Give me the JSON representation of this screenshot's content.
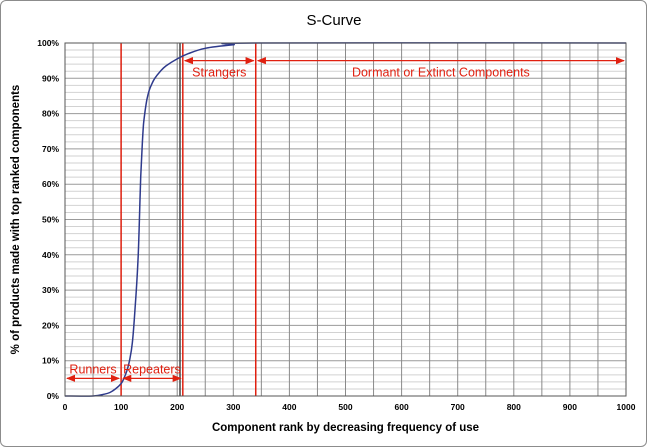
{
  "chart_data": {
    "type": "line",
    "title": "S-Curve",
    "xlabel": "Component rank by decreasing frequency of use",
    "ylabel": "% of products made with top ranked components",
    "xlim": [
      0,
      1000
    ],
    "ylim": [
      0,
      100
    ],
    "x_ticks": [
      "0",
      "100",
      "200",
      "300",
      "400",
      "500",
      "600",
      "700",
      "800",
      "900",
      "1000"
    ],
    "y_ticks": [
      "0%",
      "10%",
      "20%",
      "30%",
      "40%",
      "50%",
      "60%",
      "70%",
      "80%",
      "90%",
      "100%"
    ],
    "grid": true,
    "line_color": "#2e3a8c",
    "annotation_color": "#e02010",
    "series": [
      {
        "x": [
          0,
          50,
          70,
          80,
          90,
          100,
          105,
          110,
          115,
          120,
          125,
          130,
          132,
          135,
          138,
          140,
          143,
          146,
          150,
          155,
          160,
          170,
          180,
          200,
          220,
          250,
          300,
          340,
          1000
        ],
        "y": [
          0,
          0,
          0.5,
          1,
          2,
          3.5,
          5,
          7,
          10,
          15,
          25,
          38,
          47,
          62,
          72,
          77,
          81,
          84,
          86.5,
          88.5,
          90,
          92,
          93.5,
          95.5,
          97,
          98.5,
          99.5,
          100,
          100
        ]
      }
    ],
    "vlines": [
      100,
      210,
      340
    ],
    "vlines_dark": [
      205
    ],
    "zones": [
      {
        "label": "Runners",
        "from": 0,
        "to": 100,
        "y": 5
      },
      {
        "label": "Repeaters",
        "from": 100,
        "to": 210,
        "y": 5
      },
      {
        "label": "Strangers",
        "from": 210,
        "to": 340,
        "y": 95
      },
      {
        "label": "Dormant or Extinct Components",
        "from": 340,
        "to": 1000,
        "y": 95
      }
    ]
  }
}
